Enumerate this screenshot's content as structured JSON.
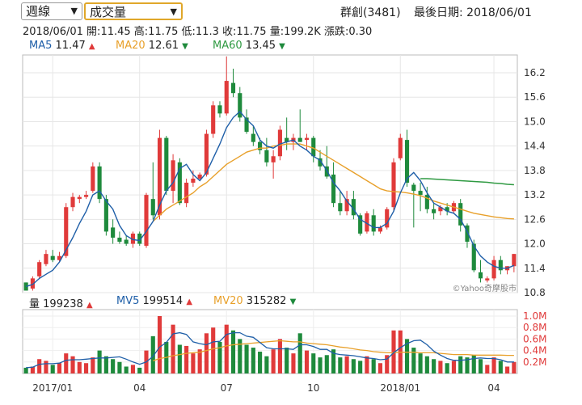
{
  "toolbar": {
    "period_select": "週線",
    "indicator_select": "成交量",
    "stock": "群創(3481)",
    "last_date": "最後日期: 2018/06/01"
  },
  "info_line": "2018/06/01  開:11.45  高:11.75  低:11.3  收:11.75  量:199.2K  漲跌:0.30",
  "ma_legend": [
    {
      "label": "MA5",
      "value": "11.47",
      "color": "#1f5fa8",
      "dir": "▲",
      "dir_color": "#e03a3a"
    },
    {
      "label": "MA20",
      "value": "12.61",
      "color": "#e8a02a",
      "dir": "▼",
      "dir_color": "#1e8a3c"
    },
    {
      "label": "MA60",
      "value": "13.45",
      "color": "#2f9a42",
      "dir": "▼",
      "dir_color": "#1e8a3c"
    }
  ],
  "volume_legend": [
    {
      "label": "量",
      "value": "199238",
      "color": "#222",
      "dir": "▲",
      "dir_color": "#e03a3a"
    },
    {
      "label": "MV5",
      "value": "199514",
      "color": "#1f5fa8",
      "dir": "▲",
      "dir_color": "#e03a3a"
    },
    {
      "label": "MV20",
      "value": "315282",
      "color": "#e8a02a",
      "dir": "▼",
      "dir_color": "#1e8a3c"
    }
  ],
  "watermark": "©Yahoo奇摩股市",
  "colors": {
    "up": "#e03a3a",
    "down": "#1e8a3c",
    "ma5": "#1f5fa8",
    "ma20": "#e8a02a",
    "ma60": "#2f9a42",
    "neutral": "#555555"
  },
  "chart_data": {
    "type": "candlestick",
    "price_axis": {
      "ticks": [
        "16.2",
        "15.6",
        "15.0",
        "14.4",
        "13.8",
        "13.2",
        "12.6",
        "12.0",
        "11.4",
        "10.8"
      ],
      "ylim": [
        10.8,
        16.2
      ]
    },
    "volume_axis": {
      "ticks": [
        "1.0M",
        "0.8M",
        "0.6M",
        "0.4M",
        "0.2M"
      ],
      "ylim": [
        0,
        1.0
      ]
    },
    "x_ticks": [
      {
        "label": "2017/01",
        "index": 4
      },
      {
        "label": "04",
        "index": 17
      },
      {
        "label": "07",
        "index": 30
      },
      {
        "label": "10",
        "index": 43
      },
      {
        "label": "2018/01",
        "index": 56
      },
      {
        "label": "04",
        "index": 70
      }
    ],
    "candles": [
      [
        11.05,
        11.05,
        10.85,
        10.85
      ],
      [
        10.9,
        11.2,
        10.85,
        11.15
      ],
      [
        11.2,
        11.6,
        11.15,
        11.55
      ],
      [
        11.5,
        11.85,
        11.45,
        11.75
      ],
      [
        11.7,
        11.85,
        11.55,
        11.6
      ],
      [
        11.6,
        11.8,
        11.55,
        11.7
      ],
      [
        11.7,
        13.0,
        11.65,
        12.9
      ],
      [
        12.9,
        13.25,
        12.8,
        13.15
      ],
      [
        13.1,
        13.2,
        13.0,
        13.15
      ],
      [
        13.15,
        13.3,
        13.1,
        13.2
      ],
      [
        13.3,
        14.0,
        13.25,
        13.9
      ],
      [
        13.9,
        14.0,
        13.0,
        13.1
      ],
      [
        13.1,
        13.2,
        12.2,
        12.3
      ],
      [
        12.4,
        12.6,
        12.0,
        12.15
      ],
      [
        12.15,
        12.3,
        12.0,
        12.05
      ],
      [
        12.1,
        12.2,
        11.95,
        12.0
      ],
      [
        12.0,
        12.3,
        11.9,
        12.25
      ],
      [
        12.25,
        12.3,
        11.95,
        12.0
      ],
      [
        11.95,
        13.25,
        11.9,
        13.2
      ],
      [
        13.1,
        14.0,
        12.6,
        12.7
      ],
      [
        12.7,
        14.8,
        12.6,
        14.6
      ],
      [
        14.6,
        14.65,
        13.2,
        13.3
      ],
      [
        13.3,
        14.2,
        13.0,
        14.05
      ],
      [
        14.0,
        14.1,
        12.95,
        13.0
      ],
      [
        13.0,
        13.6,
        12.9,
        13.5
      ],
      [
        13.5,
        13.8,
        13.4,
        13.6
      ],
      [
        13.6,
        13.75,
        13.55,
        13.7
      ],
      [
        13.7,
        14.8,
        13.65,
        14.7
      ],
      [
        14.7,
        15.5,
        14.6,
        15.4
      ],
      [
        15.4,
        15.5,
        15.1,
        15.2
      ],
      [
        15.2,
        16.6,
        15.15,
        16.0
      ],
      [
        15.95,
        16.3,
        15.6,
        15.7
      ],
      [
        15.7,
        15.85,
        15.0,
        15.1
      ],
      [
        15.1,
        15.3,
        14.7,
        14.75
      ],
      [
        14.7,
        14.9,
        14.4,
        14.5
      ],
      [
        14.5,
        14.6,
        14.2,
        14.3
      ],
      [
        14.3,
        14.6,
        13.9,
        14.0
      ],
      [
        14.0,
        14.3,
        13.6,
        14.15
      ],
      [
        14.15,
        14.9,
        14.05,
        14.8
      ],
      [
        14.6,
        15.1,
        14.3,
        14.5
      ],
      [
        14.5,
        14.7,
        14.3,
        14.6
      ],
      [
        14.6,
        15.3,
        14.5,
        14.5
      ],
      [
        14.55,
        14.7,
        14.3,
        14.6
      ],
      [
        14.6,
        14.65,
        14.0,
        14.15
      ],
      [
        14.1,
        14.3,
        13.8,
        13.9
      ],
      [
        13.9,
        14.4,
        13.6,
        13.65
      ],
      [
        13.7,
        14.0,
        12.9,
        13.0
      ],
      [
        13.0,
        13.3,
        12.7,
        12.8
      ],
      [
        12.8,
        13.3,
        12.7,
        13.1
      ],
      [
        13.1,
        13.3,
        12.6,
        12.7
      ],
      [
        12.7,
        12.75,
        12.2,
        12.25
      ],
      [
        12.3,
        12.8,
        12.25,
        12.75
      ],
      [
        12.7,
        12.85,
        12.2,
        12.3
      ],
      [
        12.3,
        12.45,
        12.25,
        12.4
      ],
      [
        12.4,
        12.9,
        12.35,
        12.85
      ],
      [
        12.9,
        14.1,
        12.8,
        14.0
      ],
      [
        14.1,
        14.7,
        14.05,
        14.6
      ],
      [
        14.55,
        14.8,
        13.4,
        13.5
      ],
      [
        13.45,
        13.5,
        12.4,
        13.3
      ],
      [
        13.3,
        13.5,
        12.8,
        13.2
      ],
      [
        13.2,
        13.4,
        12.75,
        12.85
      ],
      [
        12.85,
        13.0,
        12.6,
        12.75
      ],
      [
        12.8,
        12.95,
        12.7,
        12.9
      ],
      [
        12.9,
        13.0,
        12.7,
        12.8
      ],
      [
        12.8,
        13.05,
        12.75,
        13.0
      ],
      [
        13.0,
        13.1,
        12.3,
        12.45
      ],
      [
        12.45,
        12.5,
        11.9,
        12.05
      ],
      [
        12.0,
        12.1,
        11.3,
        11.35
      ],
      [
        11.3,
        11.6,
        11.05,
        11.15
      ],
      [
        11.1,
        11.2,
        11.05,
        11.15
      ],
      [
        11.15,
        11.7,
        11.1,
        11.6
      ],
      [
        11.6,
        11.7,
        11.25,
        11.35
      ],
      [
        11.35,
        11.45,
        11.25,
        11.45
      ],
      [
        11.45,
        11.75,
        11.3,
        11.75
      ]
    ],
    "ma5": [
      10.95,
      11.0,
      11.15,
      11.25,
      11.35,
      11.55,
      11.85,
      12.15,
      12.5,
      12.8,
      13.2,
      13.3,
      13.05,
      12.85,
      12.45,
      12.2,
      12.1,
      12.08,
      12.3,
      12.55,
      12.95,
      13.3,
      13.5,
      13.85,
      13.95,
      13.7,
      13.55,
      13.75,
      14.1,
      14.45,
      14.85,
      15.1,
      15.25,
      15.05,
      14.9,
      14.55,
      14.4,
      14.35,
      14.45,
      14.5,
      14.55,
      14.4,
      14.3,
      14.15,
      14.05,
      13.8,
      13.5,
      13.3,
      13.05,
      12.85,
      12.6,
      12.5,
      12.4,
      12.4,
      12.5,
      12.8,
      13.25,
      13.6,
      13.75,
      13.55,
      13.25,
      13.0,
      12.9,
      12.8,
      12.75,
      12.6,
      12.3,
      11.95,
      11.7,
      11.55,
      11.45,
      11.4,
      11.4,
      11.47
    ],
    "ma20": [
      null,
      null,
      null,
      null,
      null,
      null,
      null,
      null,
      null,
      null,
      null,
      null,
      null,
      null,
      null,
      null,
      null,
      null,
      null,
      12.55,
      12.7,
      12.85,
      12.95,
      13.05,
      13.15,
      13.25,
      13.4,
      13.5,
      13.65,
      13.8,
      13.95,
      14.05,
      14.15,
      14.25,
      14.3,
      14.35,
      14.35,
      14.4,
      14.42,
      14.45,
      14.45,
      14.45,
      14.4,
      14.35,
      14.25,
      14.15,
      14.05,
      13.95,
      13.85,
      13.75,
      13.65,
      13.55,
      13.45,
      13.35,
      13.3,
      13.28,
      13.27,
      13.25,
      13.22,
      13.18,
      13.12,
      13.05,
      13.0,
      12.95,
      12.9,
      12.85,
      12.8,
      12.75,
      12.72,
      12.69,
      12.66,
      12.64,
      12.62,
      12.61
    ],
    "ma60": [
      null,
      null,
      null,
      null,
      null,
      null,
      null,
      null,
      null,
      null,
      null,
      null,
      null,
      null,
      null,
      null,
      null,
      null,
      null,
      null,
      null,
      null,
      null,
      null,
      null,
      null,
      null,
      null,
      null,
      null,
      null,
      null,
      null,
      null,
      null,
      null,
      null,
      null,
      null,
      null,
      null,
      null,
      null,
      null,
      null,
      null,
      null,
      null,
      null,
      null,
      null,
      null,
      null,
      null,
      null,
      null,
      null,
      null,
      null,
      13.6,
      13.6,
      13.59,
      13.58,
      13.57,
      13.56,
      13.55,
      13.54,
      13.53,
      13.52,
      13.51,
      13.49,
      13.48,
      13.46,
      13.45
    ],
    "volume_m": [
      0.1,
      0.12,
      0.25,
      0.22,
      0.15,
      0.18,
      0.35,
      0.3,
      0.2,
      0.18,
      0.28,
      0.4,
      0.3,
      0.25,
      0.2,
      0.12,
      0.15,
      0.1,
      0.4,
      0.65,
      1.0,
      0.55,
      0.85,
      0.5,
      0.48,
      0.35,
      0.42,
      0.7,
      0.8,
      0.55,
      0.85,
      0.75,
      0.6,
      0.5,
      0.45,
      0.38,
      0.3,
      0.42,
      0.6,
      0.45,
      0.35,
      0.7,
      0.4,
      0.35,
      0.28,
      0.32,
      0.42,
      0.28,
      0.3,
      0.25,
      0.22,
      0.3,
      0.25,
      0.18,
      0.32,
      0.75,
      0.75,
      0.6,
      0.45,
      0.35,
      0.3,
      0.25,
      0.22,
      0.18,
      0.22,
      0.3,
      0.28,
      0.32,
      0.25,
      0.15,
      0.28,
      0.22,
      0.12,
      0.2
    ],
    "mv5_m": [
      0.1,
      0.11,
      0.16,
      0.17,
      0.17,
      0.18,
      0.23,
      0.24,
      0.24,
      0.25,
      0.26,
      0.27,
      0.27,
      0.28,
      0.29,
      0.25,
      0.2,
      0.16,
      0.2,
      0.3,
      0.46,
      0.54,
      0.69,
      0.71,
      0.68,
      0.55,
      0.52,
      0.5,
      0.55,
      0.56,
      0.68,
      0.71,
      0.71,
      0.65,
      0.63,
      0.54,
      0.45,
      0.43,
      0.43,
      0.43,
      0.42,
      0.5,
      0.5,
      0.47,
      0.42,
      0.42,
      0.35,
      0.33,
      0.32,
      0.31,
      0.29,
      0.27,
      0.26,
      0.24,
      0.25,
      0.36,
      0.45,
      0.52,
      0.57,
      0.58,
      0.5,
      0.39,
      0.32,
      0.26,
      0.23,
      0.23,
      0.24,
      0.26,
      0.27,
      0.26,
      0.26,
      0.24,
      0.2,
      0.2
    ],
    "mv20_m": [
      null,
      null,
      null,
      null,
      null,
      null,
      null,
      null,
      null,
      null,
      null,
      null,
      null,
      null,
      null,
      null,
      null,
      null,
      null,
      0.22,
      0.26,
      0.28,
      0.31,
      0.33,
      0.35,
      0.36,
      0.37,
      0.4,
      0.43,
      0.45,
      0.48,
      0.5,
      0.51,
      0.52,
      0.53,
      0.54,
      0.55,
      0.56,
      0.57,
      0.56,
      0.55,
      0.55,
      0.53,
      0.52,
      0.51,
      0.5,
      0.48,
      0.46,
      0.45,
      0.43,
      0.41,
      0.4,
      0.38,
      0.37,
      0.36,
      0.36,
      0.37,
      0.37,
      0.37,
      0.36,
      0.36,
      0.36,
      0.35,
      0.34,
      0.33,
      0.33,
      0.33,
      0.32,
      0.32,
      0.32,
      0.32,
      0.32,
      0.315,
      0.315
    ]
  }
}
